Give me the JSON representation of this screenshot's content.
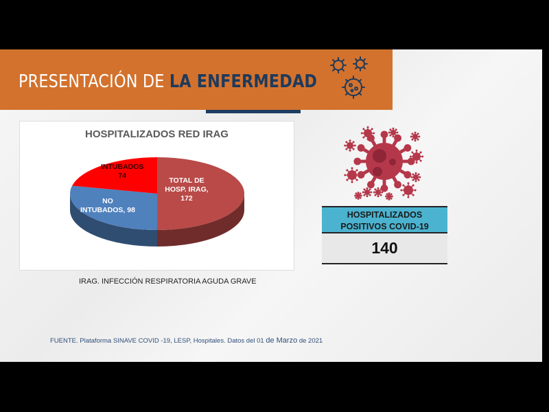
{
  "header": {
    "title_light": "PRESENTACIÓN DE ",
    "title_bold": "LA ENFERMEDAD",
    "icon": "virus-gears-icon"
  },
  "chart_data": {
    "type": "pie",
    "title": "HOSPITALIZADOS RED IRAG",
    "slices": [
      {
        "label": "TOTAL DE HOSP. IRAG",
        "label_lines": [
          "TOTAL DE",
          "HOSP. IRAG,",
          "172"
        ],
        "value": 172,
        "color": "#b94a48"
      },
      {
        "label": "NO INTUBADOS",
        "label_lines": [
          "NO",
          "INTUBADOS, 98"
        ],
        "value": 98,
        "color": "#4f81bd"
      },
      {
        "label": "INTUBADOS",
        "label_lines": [
          "INTUBADOS",
          "74"
        ],
        "value": 74,
        "color": "#ff0000"
      }
    ],
    "style": "3d"
  },
  "caption": "IRAG. INFECCIÓN RESPIRATORIA AGUDA GRAVE",
  "source": {
    "prefix": "FUENTE. Plataforma SINAVE COVID -19, LESP, Hospitales. Datos del 01 ",
    "de1": "de Marzo",
    "suffix": " de 2021"
  },
  "kpi": {
    "label_line1": "HOSPITALIZADOS",
    "label_line2": "POSITIVOS COVID-19",
    "value": "140",
    "header_color": "#4bb3cf"
  },
  "virus_icon": {
    "name": "coronavirus-icon",
    "color": "#b5384a"
  }
}
